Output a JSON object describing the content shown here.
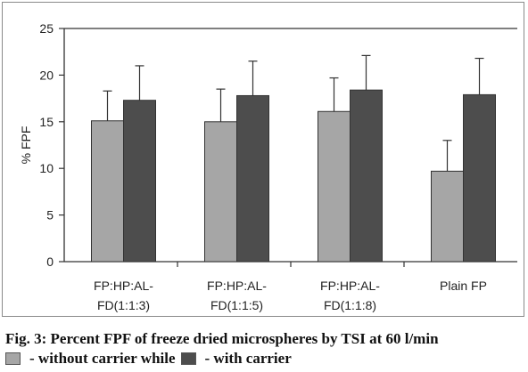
{
  "chart_data": {
    "type": "bar",
    "title": "",
    "xlabel": "",
    "ylabel": "% FPF",
    "ylim": [
      0,
      25
    ],
    "yticks": [
      "0",
      "5",
      "10",
      "15",
      "20",
      "25"
    ],
    "categories": [
      [
        "FP:HP:AL-",
        "FD(1:1:3)"
      ],
      [
        "FP:HP:AL-",
        "FD(1:1:5)"
      ],
      [
        "FP:HP:AL-",
        "FD(1:1:8)"
      ],
      [
        "Plain FP"
      ]
    ],
    "series": [
      {
        "key": "without",
        "color": "#a6a6a6",
        "values": [
          15.1,
          15.0,
          16.1,
          9.7
        ],
        "errors": [
          3.2,
          3.5,
          3.6,
          3.3
        ]
      },
      {
        "key": "with",
        "color": "#4d4d4d",
        "values": [
          17.3,
          17.8,
          18.4,
          17.9
        ],
        "errors": [
          3.7,
          3.7,
          3.7,
          3.9
        ]
      }
    ],
    "grid": false
  },
  "caption": {
    "line1": "Fig. 3: Percent FPF of freeze dried microspheres by TSI at 60 l/min",
    "legend_without": "- without carrier while",
    "legend_with": "- with carrier"
  },
  "colors": {
    "without": "#a6a6a6",
    "with": "#4d4d4d"
  }
}
